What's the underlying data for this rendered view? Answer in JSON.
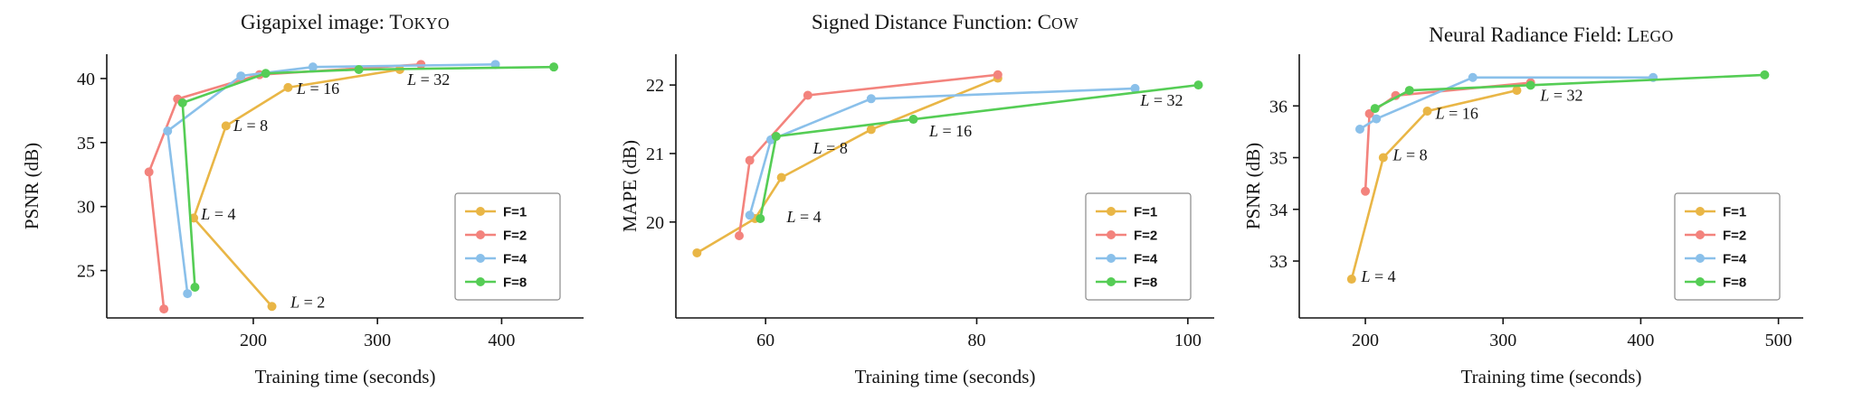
{
  "figure": {
    "background": "#ffffff"
  },
  "chart_data": [
    {
      "type": "line",
      "title_prefix": "Gigapixel image: ",
      "title_smallcaps": "Tokyo",
      "xlabel": "Training time (seconds)",
      "ylabel": "PSNR (dB)",
      "xlim": [
        82,
        466
      ],
      "ylim": [
        21.3,
        41.9
      ],
      "xticks": [
        200,
        300,
        400
      ],
      "yticks": [
        25,
        30,
        35,
        40
      ],
      "grid": false,
      "legend_position": "lower right",
      "series": [
        {
          "name": "F=1",
          "color": "#E9B646",
          "points": [
            [
              215,
              22.2
            ],
            [
              152,
              29.1
            ],
            [
              178,
              36.3
            ],
            [
              228,
              39.3
            ],
            [
              318,
              40.7
            ]
          ]
        },
        {
          "name": "F=2",
          "color": "#F3837D",
          "points": [
            [
              128,
              22.0
            ],
            [
              116,
              32.7
            ],
            [
              139,
              38.4
            ],
            [
              205,
              40.3
            ],
            [
              335,
              41.1
            ]
          ]
        },
        {
          "name": "F=4",
          "color": "#8AC0EA",
          "points": [
            [
              147,
              23.2
            ],
            [
              131,
              35.9
            ],
            [
              190,
              40.2
            ],
            [
              248,
              40.9
            ],
            [
              395,
              41.1
            ]
          ]
        },
        {
          "name": "F=8",
          "color": "#55CD55",
          "points": [
            [
              153,
              23.7
            ],
            [
              143,
              38.1
            ],
            [
              210,
              40.4
            ],
            [
              285,
              40.7
            ],
            [
              442,
              40.9
            ]
          ]
        }
      ],
      "annotations": [
        {
          "text": "L = 2",
          "x": 230,
          "y": 22.1
        },
        {
          "text": "L = 4",
          "x": 158,
          "y": 29.0
        },
        {
          "text": "L = 8",
          "x": 184,
          "y": 35.9
        },
        {
          "text": "L = 16",
          "x": 235,
          "y": 38.8
        },
        {
          "text": "L = 32",
          "x": 324,
          "y": 39.5
        }
      ]
    },
    {
      "type": "line",
      "title_prefix": "Signed Distance Function: ",
      "title_smallcaps": "Cow",
      "xlabel": "Training time (seconds)",
      "ylabel": "MAPE (dB)",
      "xlim": [
        51.5,
        102.5
      ],
      "ylim": [
        18.6,
        22.45
      ],
      "xticks": [
        60,
        80,
        100
      ],
      "yticks": [
        20,
        21,
        22
      ],
      "grid": false,
      "legend_position": "lower right",
      "series": [
        {
          "name": "F=1",
          "color": "#E9B646",
          "points": [
            [
              53.5,
              19.55
            ],
            [
              59,
              20.05
            ],
            [
              61.5,
              20.65
            ],
            [
              70,
              21.35
            ],
            [
              82,
              22.1
            ]
          ]
        },
        {
          "name": "F=2",
          "color": "#F3837D",
          "points": [
            [
              57.5,
              19.8
            ],
            [
              58.5,
              20.9
            ],
            [
              64,
              21.85
            ],
            [
              82,
              22.15
            ]
          ]
        },
        {
          "name": "F=4",
          "color": "#8AC0EA",
          "points": [
            [
              58.5,
              20.1
            ],
            [
              60.5,
              21.2
            ],
            [
              70,
              21.8
            ],
            [
              95,
              21.95
            ]
          ]
        },
        {
          "name": "F=8",
          "color": "#55CD55",
          "points": [
            [
              59.5,
              20.05
            ],
            [
              61,
              21.25
            ],
            [
              74,
              21.5
            ],
            [
              101,
              22.0
            ]
          ]
        }
      ],
      "annotations": [
        {
          "text": "L = 4",
          "x": 62,
          "y": 20.0
        },
        {
          "text": "L = 8",
          "x": 64.5,
          "y": 21.0
        },
        {
          "text": "L = 16",
          "x": 75.5,
          "y": 21.25
        },
        {
          "text": "L = 32",
          "x": 95.5,
          "y": 21.7
        }
      ]
    },
    {
      "type": "line",
      "title_prefix": "Neural Radiance Field: ",
      "title_smallcaps": "Lego",
      "xlabel": "Training time (seconds)",
      "ylabel": "PSNR (dB)",
      "xlim": [
        152,
        518
      ],
      "ylim": [
        31.9,
        37.0
      ],
      "xticks": [
        200,
        300,
        400,
        500
      ],
      "yticks": [
        33,
        34,
        35,
        36
      ],
      "grid": false,
      "legend_position": "lower right",
      "series": [
        {
          "name": "F=1",
          "color": "#E9B646",
          "points": [
            [
              190,
              32.65
            ],
            [
              213,
              35.0
            ],
            [
              245,
              35.9
            ],
            [
              310,
              36.3
            ]
          ]
        },
        {
          "name": "F=2",
          "color": "#F3837D",
          "points": [
            [
              200,
              34.35
            ],
            [
              203,
              35.85
            ],
            [
              222,
              36.2
            ],
            [
              320,
              36.45
            ]
          ]
        },
        {
          "name": "F=4",
          "color": "#8AC0EA",
          "points": [
            [
              196,
              35.55
            ],
            [
              208,
              35.75
            ],
            [
              278,
              36.55
            ],
            [
              409,
              36.55
            ]
          ]
        },
        {
          "name": "F=8",
          "color": "#55CD55",
          "points": [
            [
              207,
              35.95
            ],
            [
              232,
              36.3
            ],
            [
              320,
              36.4
            ],
            [
              490,
              36.6
            ]
          ]
        }
      ],
      "annotations": [
        {
          "text": "L = 4",
          "x": 197,
          "y": 32.6
        },
        {
          "text": "L = 8",
          "x": 220,
          "y": 34.95
        },
        {
          "text": "L = 16",
          "x": 251,
          "y": 35.75
        },
        {
          "text": "L = 32",
          "x": 327,
          "y": 36.1
        }
      ]
    }
  ]
}
